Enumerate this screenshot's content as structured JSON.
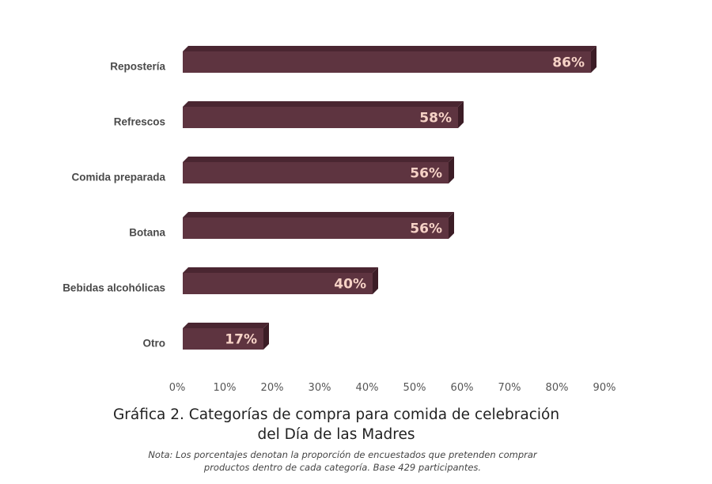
{
  "chart_data": {
    "type": "bar",
    "orientation": "horizontal",
    "style": "3d",
    "categories": [
      "Repostería",
      "Refrescos",
      "Comida preparada",
      "Botana",
      "Bebidas alcohólicas",
      "Otro"
    ],
    "values": [
      86,
      58,
      56,
      56,
      40,
      17
    ],
    "data_labels": [
      "86%",
      "58%",
      "56%",
      "56%",
      "40%",
      "17%"
    ],
    "xlim": [
      0,
      90
    ],
    "x_ticks": [
      "0%",
      "10%",
      "20%",
      "30%",
      "40%",
      "50%",
      "60%",
      "70%",
      "80%",
      "90%"
    ],
    "grid": false,
    "legend": "none",
    "title": "Gráfica 2. Categorías de compra para comida de celebración del Día de las Madres",
    "title_lines": [
      "Gráfica 2. Categorías de compra para comida de celebración",
      "del Día de las Madres"
    ],
    "note_lines": [
      "Nota:  Los porcentajes denotan la proporción de encuestados que pretenden comprar",
      "productos dentro de cada categoría. Base 429 participantes."
    ],
    "colors": {
      "front": "#5e3440",
      "top": "#4a2631",
      "side": "#3c1d26",
      "label": "#f6d2c6"
    }
  }
}
